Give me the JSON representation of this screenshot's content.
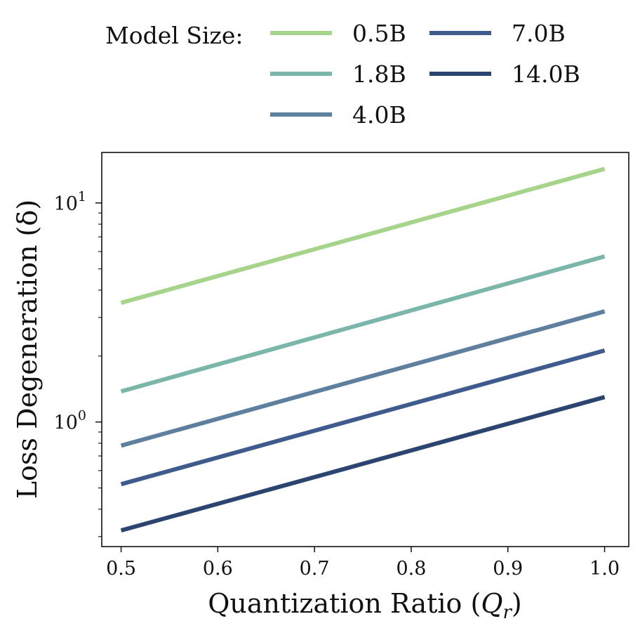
{
  "chart_data": {
    "type": "line",
    "yscale": "log",
    "xlabel": "Quantization Ratio (",
    "xlabel_symbol": "Q",
    "xlabel_sub": "r",
    "xlabel_close": ")",
    "ylabel": "Loss Degeneration (δ)",
    "xlim": [
      0.48,
      1.025
    ],
    "ylim": [
      0.27,
      17
    ],
    "x_ticks": [
      0.5,
      0.6,
      0.7,
      0.8,
      0.9,
      1.0
    ],
    "x_tick_labels": [
      "0.5",
      "0.6",
      "0.7",
      "0.8",
      "0.9",
      "1.0"
    ],
    "y_major_ticks": [
      1,
      10
    ],
    "y_tick_labels": [
      {
        "base": "10",
        "exp": "0"
      },
      {
        "base": "10",
        "exp": "1"
      }
    ],
    "legend": {
      "title": "Model Size:",
      "placement": "top, outside plot"
    },
    "x": [
      0.5,
      1.0
    ],
    "series": [
      {
        "name": "0.5B",
        "color": "#a6d48a",
        "values": [
          3.5,
          14.3
        ]
      },
      {
        "name": "1.8B",
        "color": "#7ab7aa",
        "values": [
          1.38,
          5.7
        ]
      },
      {
        "name": "4.0B",
        "color": "#5f7f9e",
        "values": [
          0.78,
          3.2
        ]
      },
      {
        "name": "7.0B",
        "color": "#3f5b8e",
        "values": [
          0.52,
          2.12
        ]
      },
      {
        "name": "14.0B",
        "color": "#2b4570",
        "values": [
          0.32,
          1.3
        ]
      }
    ]
  }
}
